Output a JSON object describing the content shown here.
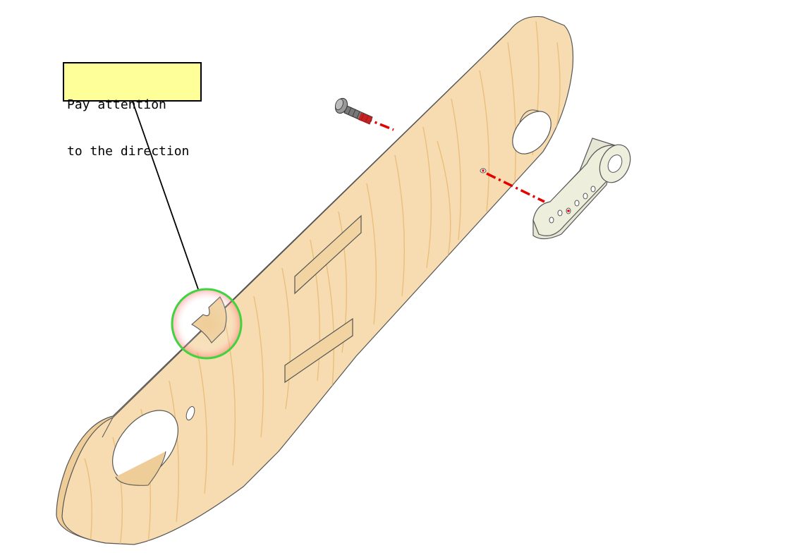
{
  "callout": {
    "line1": "Pay attention",
    "line2": "to the direction"
  },
  "colors": {
    "wood_face": "#f6dcb0",
    "wood_edge": "#efcd98",
    "wood_grain": "#e8b870",
    "outline": "#555555",
    "highlight_ring": "#3fd43f",
    "assembly_line": "#e60000",
    "callout_fill": "#ffff99",
    "servo_horn": "#eeeedd"
  },
  "parts": {
    "plate": "wooden-arm-plate",
    "screw": "machine-screw",
    "horn": "servo-horn"
  }
}
